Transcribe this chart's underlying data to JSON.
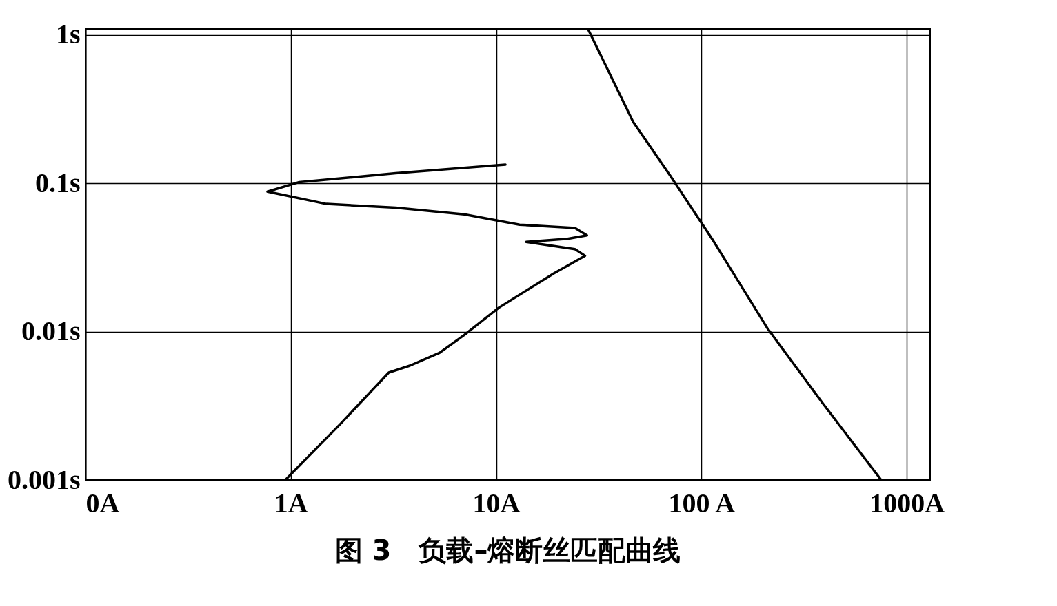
{
  "chart_data": {
    "type": "line",
    "title": "图 3　负载–熔断丝匹配曲线",
    "log": "xy",
    "grid": true,
    "marker": "none",
    "line_style": "solid",
    "xlim": [
      0.1,
      1300
    ],
    "ylim": [
      0.001,
      1.1
    ],
    "xticks": [
      {
        "value": 0.1,
        "label": "0A"
      },
      {
        "value": 1,
        "label": "1A"
      },
      {
        "value": 10,
        "label": "10A"
      },
      {
        "value": 100,
        "label": "100 A"
      },
      {
        "value": 1000,
        "label": "1000A"
      }
    ],
    "yticks": [
      {
        "value": 0.001,
        "label": "0.001s"
      },
      {
        "value": 0.01,
        "label": "0.01s"
      },
      {
        "value": 0.1,
        "label": "0.1s"
      },
      {
        "value": 1,
        "label": "1s"
      }
    ],
    "series": [
      {
        "color": "#000000",
        "x": [
          0.94,
          1.75,
          3.0,
          3.8,
          5.3,
          7.0,
          10.3,
          19.1,
          27.1,
          24.2,
          14,
          22.3,
          27.7,
          24.2,
          13,
          7.0,
          3.24,
          1.49,
          0.77,
          1.1,
          3.24,
          11.1
        ],
        "values": [
          0.001,
          0.0024,
          0.0053,
          0.0059,
          0.0072,
          0.0095,
          0.0145,
          0.0247,
          0.0325,
          0.036,
          0.0403,
          0.0423,
          0.0446,
          0.05,
          0.0527,
          0.0618,
          0.0686,
          0.0727,
          0.088,
          0.102,
          0.117,
          0.134
        ]
      },
      {
        "color": "#000000",
        "x": [
          28,
          46.5,
          71,
          113,
          210,
          389,
          751
        ],
        "values": [
          1.1,
          0.26,
          0.111,
          0.042,
          0.0105,
          0.0033,
          0.001
        ]
      }
    ]
  }
}
